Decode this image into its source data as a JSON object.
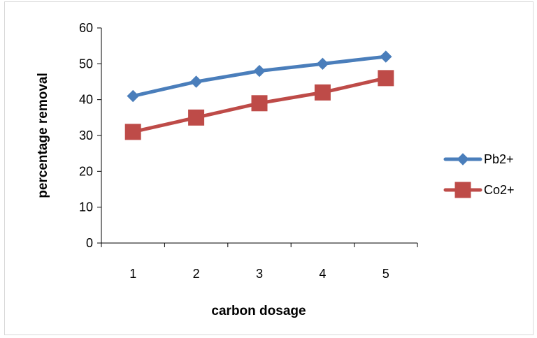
{
  "chart_data": {
    "type": "line",
    "title": "",
    "xlabel": "carbon dosage",
    "ylabel": "percentage removal",
    "categories": [
      "1",
      "2",
      "3",
      "4",
      "5"
    ],
    "x": [
      1,
      2,
      3,
      4,
      5
    ],
    "ylim": [
      0,
      60
    ],
    "yticks": [
      0,
      10,
      20,
      30,
      40,
      50,
      60
    ],
    "grid": false,
    "legend_position": "right",
    "series": [
      {
        "name": "Pb2+",
        "values": [
          41,
          45,
          48,
          50,
          52
        ],
        "color": "#4A7EBB",
        "marker": "diamond"
      },
      {
        "name": "Co2+",
        "values": [
          31,
          35,
          39,
          42,
          46
        ],
        "color": "#BE4B48",
        "marker": "square"
      }
    ]
  }
}
